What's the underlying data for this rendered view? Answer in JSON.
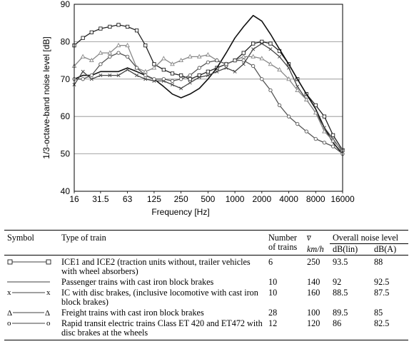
{
  "chart_data": {
    "type": "line",
    "xlabel": "Frequency [Hz]",
    "ylabel": "1/3-octave-band noise level [dB]",
    "ylim": [
      40,
      90
    ],
    "yticks": [
      "40",
      "50",
      "60",
      "70",
      "80",
      "90"
    ],
    "xscale": "log",
    "xtick_labels": [
      "16",
      "31.5",
      "63",
      "125",
      "250",
      "500",
      "1000",
      "2000",
      "4000",
      "8000",
      "16000"
    ],
    "grid": "horizontal",
    "x": [
      16,
      20,
      25,
      31.5,
      40,
      50,
      63,
      80,
      100,
      125,
      160,
      200,
      250,
      315,
      400,
      500,
      630,
      800,
      1000,
      1250,
      1600,
      2000,
      2500,
      3150,
      4000,
      5000,
      6300,
      8000,
      10000,
      12500,
      16000
    ],
    "series": [
      {
        "marker": "square",
        "color": "#222222",
        "values": [
          79,
          81,
          82.5,
          83.5,
          84,
          84.5,
          84,
          83,
          79,
          74,
          72.5,
          71.5,
          71,
          70,
          71,
          72,
          73,
          74,
          75,
          77,
          79.5,
          80,
          79.5,
          77.5,
          74,
          70,
          66,
          63,
          60,
          55,
          51
        ]
      },
      {
        "marker": "none",
        "color": "#111111",
        "values": [
          70,
          71,
          71,
          72,
          72,
          72,
          73,
          72,
          71,
          70,
          68,
          66,
          65,
          66,
          67.5,
          70,
          73,
          77,
          81,
          84,
          87,
          85.5,
          82,
          78,
          74,
          70,
          66,
          62,
          57,
          53,
          50
        ]
      },
      {
        "marker": "x",
        "color": "#444444",
        "values": [
          68.5,
          72,
          70,
          71,
          71,
          71,
          72.5,
          71,
          70,
          69.5,
          69.5,
          68.5,
          67.5,
          69,
          70.5,
          71,
          72,
          73,
          72,
          74,
          78,
          79.5,
          78,
          76,
          73,
          68,
          64.5,
          61,
          57,
          54,
          50.5
        ]
      },
      {
        "marker": "triangle",
        "color": "#888888",
        "values": [
          73.5,
          76,
          75,
          77,
          77,
          79,
          79,
          73,
          72,
          73,
          75.5,
          74,
          75,
          76,
          76,
          76.5,
          75,
          74,
          75,
          76,
          76,
          75.5,
          74,
          72.5,
          70,
          67,
          64.5,
          61,
          56,
          53.5,
          51
        ]
      },
      {
        "marker": "circle",
        "color": "#555555",
        "values": [
          70,
          70,
          71,
          74,
          76,
          77,
          76,
          73,
          71,
          70,
          70,
          69.5,
          70,
          71,
          73,
          74.5,
          75,
          74,
          75,
          75,
          73.5,
          70,
          67,
          63,
          60,
          58,
          56,
          54,
          53,
          52,
          50
        ]
      }
    ]
  },
  "table": {
    "headers": {
      "symbol": "Symbol",
      "type": "Type of train",
      "number_line1": "Number",
      "number_line2": "of trains",
      "speed_symbol": "v̅",
      "speed_unit": "km/h",
      "overall": "Overall noise level",
      "dblin": "dB(lin)",
      "dba": "dB(A)"
    },
    "rows": [
      {
        "symbol": "square",
        "type": "ICE1 and ICE2 (traction units without, trailer vehicles with wheel absorbers)",
        "number": "6",
        "speed": "250",
        "dblin": "93.5",
        "dba": "88"
      },
      {
        "symbol": "none",
        "type": "Passenger trains with cast iron block brakes",
        "number": "10",
        "speed": "140",
        "dblin": "92",
        "dba": "92.5"
      },
      {
        "symbol": "x",
        "symbol_text": "x",
        "type": "IC with disc brakes, (inclusive locomotive with cast iron block brakes)",
        "number": "10",
        "speed": "160",
        "dblin": "88.5",
        "dba": "87.5"
      },
      {
        "symbol": "triangle",
        "symbol_text": "Δ",
        "type": "Freight trains with cast iron block brakes",
        "number": "28",
        "speed": "100",
        "dblin": "89.5",
        "dba": "85"
      },
      {
        "symbol": "circle",
        "symbol_text": "o",
        "type": "Rapid transit electric trains Class ET 420 and ET472 with disc brakes at the wheels",
        "number": "12",
        "speed": "120",
        "dblin": "86",
        "dba": "82.5"
      }
    ]
  }
}
